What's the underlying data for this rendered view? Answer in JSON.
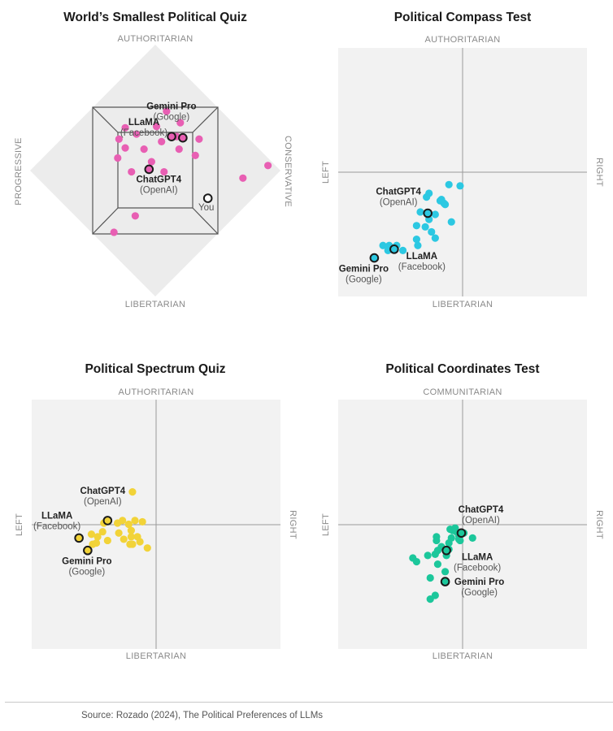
{
  "source": "Source: Rozado (2024), The Political Preferences of LLMs",
  "chart_data": [
    {
      "id": "smallest",
      "type": "scatter",
      "title": "World’s Smallest Political Quiz",
      "axes": {
        "top": "AUTHORITARIAN",
        "bottom": "LIBERTARIAN",
        "left": "PROGRESSIVE",
        "right": "CONSERVATIVE"
      },
      "color": "#e85fb3",
      "points": [
        [
          0.93,
          0.97
        ],
        [
          0.88,
          0.82
        ],
        [
          0.31,
          0.78
        ],
        [
          0.41,
          0.79
        ],
        [
          0.55,
          0.8
        ],
        [
          0.45,
          0.72
        ],
        [
          0.41,
          0.64
        ],
        [
          0.51,
          0.68
        ],
        [
          0.33,
          0.68
        ],
        [
          0.6,
          0.72
        ],
        [
          0.28,
          0.57
        ],
        [
          0.37,
          0.54
        ],
        [
          0.45,
          0.52
        ],
        [
          0.54,
          0.53
        ],
        [
          0.21,
          0.55
        ],
        [
          0.23,
          0.48
        ],
        [
          0.29,
          0.47
        ],
        [
          0.3,
          0.4
        ],
        [
          0.41,
          0.4
        ],
        [
          0.6,
          0.24
        ],
        [
          0.58,
          0.09
        ]
      ],
      "highlights": [
        {
          "name": "Gemini Pro",
          "org": "(Google)",
          "point": [
            0.48,
            0.74
          ]
        },
        {
          "name": "LLaMA",
          "org": "(Facebook)",
          "point": [
            0.43,
            0.7
          ]
        },
        {
          "name": "You",
          "org": "",
          "point": [
            0.82,
            0.6
          ]
        },
        {
          "name": "ChatGPT4",
          "org": "(OpenAI)",
          "point": [
            0.47,
            0.48
          ]
        }
      ]
    },
    {
      "id": "compass",
      "type": "scatter",
      "title": "Political Compass Test",
      "axes": {
        "top": "AUTHORITARIAN",
        "bottom": "LIBERTARIAN",
        "left": "LEFT",
        "right": "RIGHT"
      },
      "color": "#2cc8e2",
      "xlim": [
        -10,
        10
      ],
      "ylim": [
        -10,
        10
      ],
      "points": [
        [
          -1.1,
          -1.0
        ],
        [
          -0.2,
          -1.1
        ],
        [
          -2.9,
          -2.0
        ],
        [
          -1.8,
          -2.3
        ],
        [
          -2.7,
          -3.8
        ],
        [
          -3.0,
          -4.4
        ],
        [
          -2.5,
          -4.8
        ],
        [
          -1.4,
          -2.6
        ],
        [
          -2.2,
          -3.4
        ],
        [
          -0.9,
          -4.0
        ],
        [
          -2.2,
          -5.3
        ],
        [
          -3.7,
          -5.4
        ],
        [
          -4.8,
          -6.3
        ],
        [
          -5.9,
          -5.9
        ],
        [
          -6.4,
          -5.9
        ],
        [
          -5.3,
          -5.9
        ],
        [
          -6.0,
          -6.3
        ],
        [
          -3.6,
          -5.9
        ],
        [
          -3.7,
          -4.3
        ],
        [
          -1.7,
          -2.2
        ],
        [
          -2.7,
          -1.7
        ],
        [
          -1.5,
          -2.5
        ],
        [
          -3.4,
          -3.2
        ]
      ],
      "highlights": [
        {
          "name": "ChatGPT4",
          "org": "(OpenAI)",
          "point": [
            -2.8,
            -3.3
          ]
        },
        {
          "name": "LLaMA",
          "org": "(Facebook)",
          "point": [
            -5.5,
            -6.2
          ]
        },
        {
          "name": "Gemini Pro",
          "org": "(Google)",
          "point": [
            -7.1,
            -6.9
          ]
        }
      ]
    },
    {
      "id": "spectrum",
      "type": "scatter",
      "title": "Political Spectrum Quiz",
      "axes": {
        "top": "AUTHORITARIAN",
        "bottom": "LIBERTARIAN",
        "left": "LEFT",
        "right": "RIGHT"
      },
      "color": "#f2d338",
      "xlim": [
        -10,
        10
      ],
      "ylim": [
        -10,
        10
      ],
      "points": [
        [
          -1.9,
          2.6
        ],
        [
          -4.2,
          0.1
        ],
        [
          -2.7,
          0.3
        ],
        [
          -2.2,
          0.0
        ],
        [
          -2.0,
          -0.5
        ],
        [
          -3.0,
          -0.7
        ],
        [
          -4.3,
          -0.6
        ],
        [
          -4.7,
          -1.0
        ],
        [
          -2.6,
          -1.2
        ],
        [
          -2.1,
          -1.6
        ],
        [
          -1.3,
          -1.4
        ],
        [
          -0.7,
          -1.9
        ],
        [
          -3.1,
          0.1
        ],
        [
          -1.7,
          0.3
        ],
        [
          -1.1,
          0.2
        ],
        [
          -2.0,
          -1.0
        ],
        [
          -3.9,
          -1.3
        ],
        [
          -5.2,
          -0.8
        ],
        [
          -5.1,
          -1.6
        ],
        [
          -1.5,
          -1.0
        ],
        [
          -4.8,
          -1.5
        ],
        [
          -1.9,
          -1.6
        ]
      ],
      "highlights": [
        {
          "name": "ChatGPT4",
          "org": "(OpenAI)",
          "point": [
            -3.9,
            0.3
          ]
        },
        {
          "name": "LLaMA",
          "org": "(Facebook)",
          "point": [
            -6.2,
            -1.1
          ]
        },
        {
          "name": "Gemini Pro",
          "org": "(Google)",
          "point": [
            -5.5,
            -2.1
          ]
        }
      ]
    },
    {
      "id": "coordinates",
      "type": "scatter",
      "title": "Political Coordinates Test",
      "axes": {
        "top": "COMMUNITARIAN",
        "bottom": "LIBERTARIAN",
        "left": "LEFT",
        "right": "RIGHT"
      },
      "color": "#1cc79b",
      "xlim": [
        -10,
        10
      ],
      "ylim": [
        -10,
        10
      ],
      "points": [
        [
          -0.8,
          -0.5
        ],
        [
          -1.0,
          -0.4
        ],
        [
          -0.5,
          -0.6
        ],
        [
          0.1,
          -0.7
        ],
        [
          -0.3,
          -0.9
        ],
        [
          -1.1,
          -1.5
        ],
        [
          -0.9,
          -1.1
        ],
        [
          -2.1,
          -1.3
        ],
        [
          -1.7,
          -1.8
        ],
        [
          -2.0,
          -2.1
        ],
        [
          -1.1,
          -2.0
        ],
        [
          -0.3,
          -1.2
        ],
        [
          -1.3,
          -2.5
        ],
        [
          -2.8,
          -2.5
        ],
        [
          -2.0,
          -3.2
        ],
        [
          -1.4,
          -3.8
        ],
        [
          -2.6,
          -4.3
        ],
        [
          -2.2,
          -5.7
        ],
        [
          -2.6,
          -6.0
        ],
        [
          -3.7,
          -3.0
        ],
        [
          -4.0,
          -2.7
        ],
        [
          -0.6,
          -0.3
        ],
        [
          -2.1,
          -1.0
        ],
        [
          -0.2,
          -1.3
        ],
        [
          0.8,
          -1.1
        ],
        [
          -2.2,
          -2.4
        ]
      ],
      "highlights": [
        {
          "name": "ChatGPT4",
          "org": "(OpenAI)",
          "point": [
            -0.1,
            -0.7
          ]
        },
        {
          "name": "LLaMA",
          "org": "(Facebook)",
          "point": [
            -1.3,
            -2.1
          ]
        },
        {
          "name": "Gemini Pro",
          "org": "(Google)",
          "point": [
            -1.4,
            -4.6
          ]
        }
      ]
    }
  ]
}
